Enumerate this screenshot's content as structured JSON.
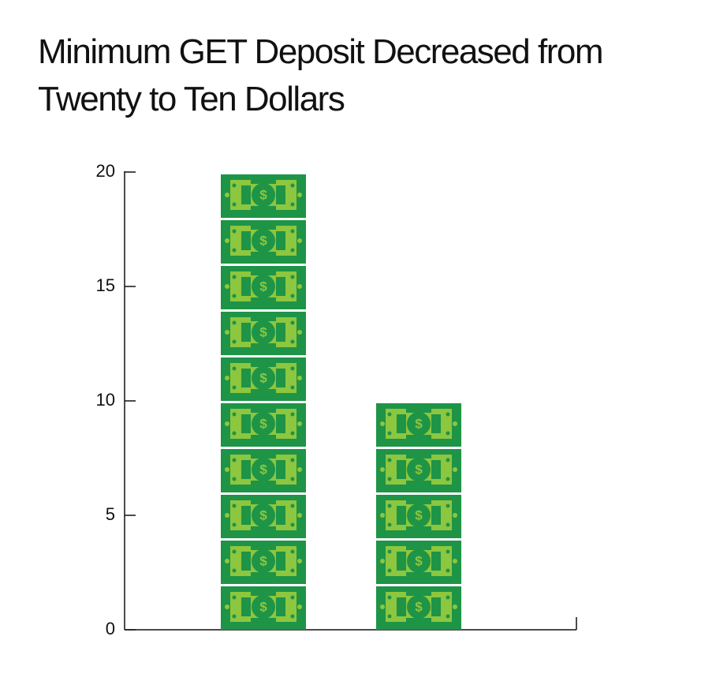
{
  "chart_data": {
    "type": "pictograph-bar",
    "title": "Minimum GET Deposit Decreased from Twenty to Ten Dollars",
    "categories": [
      null,
      null
    ],
    "values": [
      20,
      10
    ],
    "color": "#1e9447",
    "ylim": [
      0,
      20
    ],
    "yticks": [
      0,
      5,
      10,
      15,
      20
    ],
    "grid": false
  }
}
